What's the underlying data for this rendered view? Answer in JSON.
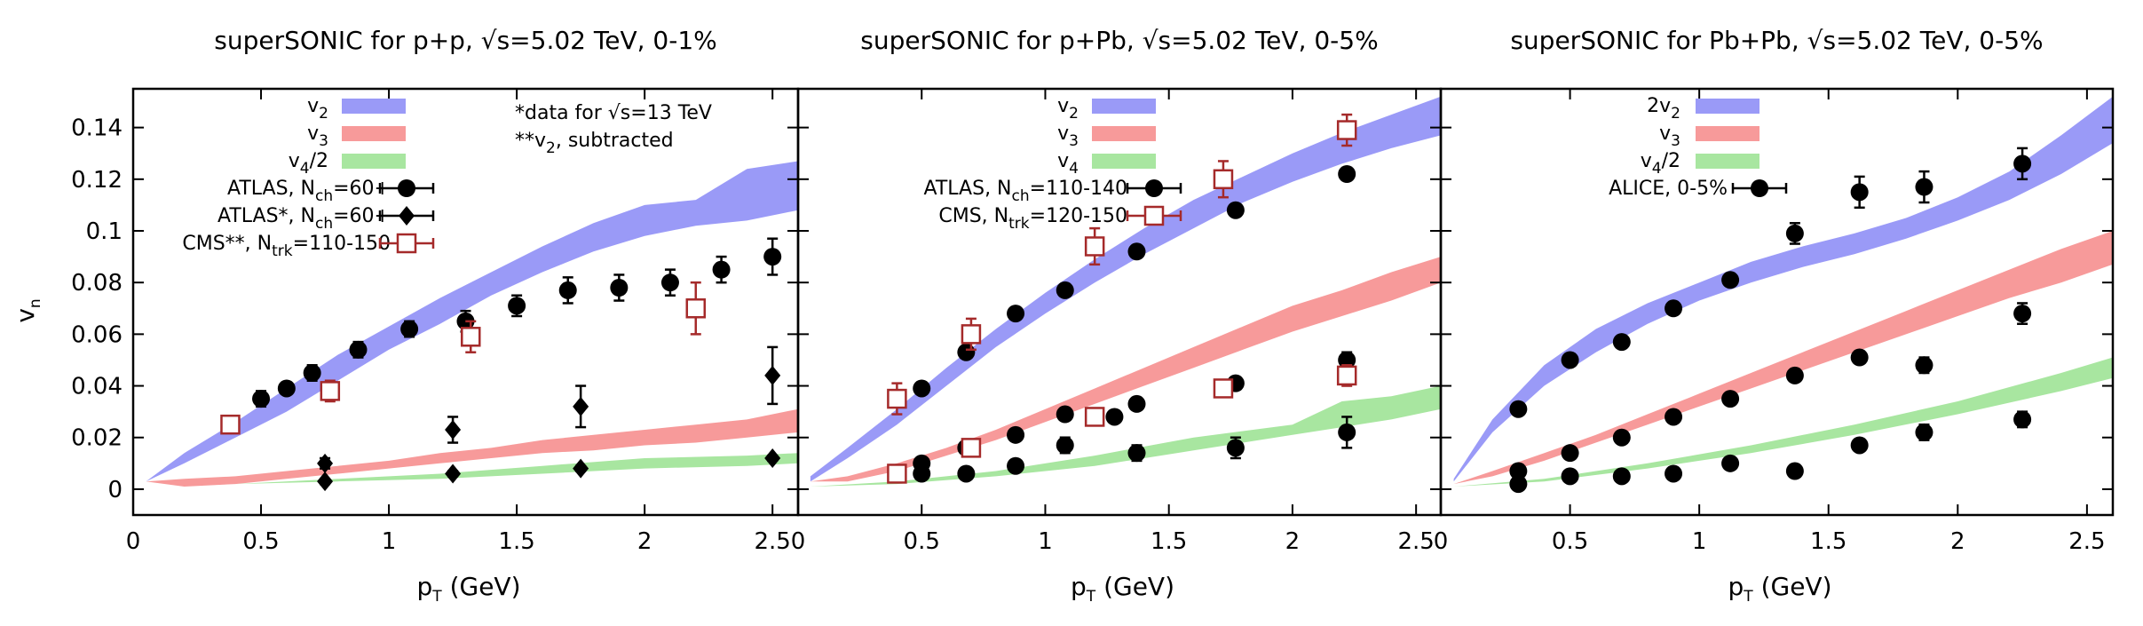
{
  "colors": {
    "v2": "#9a9af7",
    "v3": "#f79a9a",
    "v4": "#a8e6a0",
    "cms": "#a52a2a",
    "markers": "#000000"
  },
  "axes": {
    "xlabel": "p",
    "xlabel_sub": "T",
    "xlabel_unit": " (GeV)",
    "ylabel": "v",
    "ylabel_sub": "n"
  },
  "x_ticks": [
    "0",
    "0.5",
    "1",
    "1.5",
    "2",
    "2.5"
  ],
  "y_ticks": [
    "0",
    "0.02",
    "0.04",
    "0.06",
    "0.08",
    "0.1",
    "0.12",
    "0.14"
  ],
  "chart_data": [
    {
      "type": "line",
      "title": "superSONIC for p+p, √s=5.02 TeV, 0-1%",
      "xlim": [
        0,
        2.6
      ],
      "ylim": [
        -0.01,
        0.155
      ],
      "notes": [
        "*data for √s=13 TeV",
        "**v",
        "2",
        ", subtracted"
      ],
      "bands": [
        {
          "id": "v2",
          "label": "v",
          "sub": "2",
          "prefix": "",
          "suffix": "",
          "color": "#9a9af7",
          "x": [
            0.05,
            0.2,
            0.4,
            0.6,
            0.8,
            1.0,
            1.2,
            1.4,
            1.6,
            1.8,
            2.0,
            2.2,
            2.4,
            2.6
          ],
          "lo": [
            0.003,
            0.01,
            0.02,
            0.03,
            0.042,
            0.054,
            0.064,
            0.075,
            0.084,
            0.092,
            0.098,
            0.102,
            0.104,
            0.108
          ],
          "hi": [
            0.003,
            0.014,
            0.026,
            0.039,
            0.052,
            0.063,
            0.074,
            0.084,
            0.094,
            0.103,
            0.11,
            0.112,
            0.124,
            0.127
          ]
        },
        {
          "id": "v3",
          "label": "v",
          "sub": "3",
          "prefix": "",
          "suffix": "",
          "color": "#f79a9a",
          "x": [
            0.05,
            0.2,
            0.4,
            0.6,
            0.8,
            1.0,
            1.2,
            1.4,
            1.6,
            1.8,
            2.0,
            2.2,
            2.4,
            2.6
          ],
          "lo": [
            0.003,
            0.001,
            0.002,
            0.004,
            0.006,
            0.008,
            0.01,
            0.012,
            0.014,
            0.015,
            0.017,
            0.018,
            0.02,
            0.022
          ],
          "hi": [
            0.003,
            0.004,
            0.005,
            0.007,
            0.009,
            0.011,
            0.014,
            0.016,
            0.019,
            0.021,
            0.023,
            0.025,
            0.027,
            0.031
          ]
        },
        {
          "id": "v4",
          "label": "v",
          "sub": "4",
          "prefix": "",
          "suffix": "/2",
          "color": "#a8e6a0",
          "x": [
            0.05,
            0.4,
            0.8,
            1.2,
            1.6,
            2.0,
            2.4,
            2.6
          ],
          "lo": [
            0.002,
            0.002,
            0.003,
            0.004,
            0.006,
            0.008,
            0.009,
            0.01
          ],
          "hi": [
            0.002,
            0.002,
            0.004,
            0.006,
            0.009,
            0.012,
            0.013,
            0.014
          ]
        }
      ],
      "series": [
        {
          "id": "atlas",
          "marker": "circle",
          "color": "#000000",
          "label": "ATLAS, N",
          "sub": "ch",
          "suffix": "=60+",
          "x": [
            0.5,
            0.6,
            0.7,
            0.88,
            1.08,
            1.3,
            1.5,
            1.7,
            1.9,
            2.1,
            2.3,
            2.5
          ],
          "y": [
            0.035,
            0.039,
            0.045,
            0.054,
            0.062,
            0.065,
            0.071,
            0.077,
            0.078,
            0.08,
            0.085,
            0.09
          ],
          "err": [
            0.003,
            0.002,
            0.003,
            0.003,
            0.003,
            0.004,
            0.004,
            0.005,
            0.005,
            0.005,
            0.005,
            0.007
          ]
        },
        {
          "id": "atlas13",
          "marker": "diamond",
          "color": "#000000",
          "label": "ATLAS*, N",
          "sub": "ch",
          "suffix": "=60+",
          "x": [
            0.75,
            0.75,
            1.25,
            1.25,
            1.75,
            1.75,
            2.5,
            2.5
          ],
          "y": [
            0.003,
            0.01,
            0.006,
            0.023,
            0.008,
            0.032,
            0.012,
            0.044
          ],
          "err": [
            0.001,
            0.002,
            0.001,
            0.005,
            0.001,
            0.008,
            0.001,
            0.011
          ]
        },
        {
          "id": "cms",
          "marker": "square-open",
          "color": "#a52a2a",
          "label": "CMS**, N",
          "sub": "trk",
          "suffix": "=110-150",
          "x": [
            0.38,
            0.77,
            1.32,
            2.2
          ],
          "y": [
            0.025,
            0.038,
            0.059,
            0.07
          ],
          "err": [
            0.002,
            0.004,
            0.006,
            0.01
          ]
        }
      ]
    },
    {
      "type": "line",
      "title": "superSONIC for p+Pb, √s=5.02 TeV, 0-5%",
      "xlim": [
        0,
        2.6
      ],
      "ylim": [
        -0.01,
        0.155
      ],
      "notes": [],
      "bands": [
        {
          "id": "v2",
          "label": "v",
          "sub": "2",
          "prefix": "",
          "suffix": "",
          "color": "#9a9af7",
          "x": [
            0.05,
            0.2,
            0.4,
            0.6,
            0.8,
            1.0,
            1.2,
            1.4,
            1.6,
            1.8,
            2.0,
            2.2,
            2.4,
            2.6
          ],
          "lo": [
            0.003,
            0.012,
            0.025,
            0.04,
            0.055,
            0.068,
            0.08,
            0.091,
            0.101,
            0.111,
            0.119,
            0.126,
            0.132,
            0.137
          ],
          "hi": [
            0.005,
            0.016,
            0.031,
            0.047,
            0.062,
            0.076,
            0.089,
            0.101,
            0.112,
            0.121,
            0.13,
            0.138,
            0.145,
            0.152
          ]
        },
        {
          "id": "v3",
          "label": "v",
          "sub": "3",
          "prefix": "",
          "suffix": "",
          "color": "#f79a9a",
          "x": [
            0.05,
            0.2,
            0.4,
            0.6,
            0.8,
            1.0,
            1.2,
            1.4,
            1.6,
            1.8,
            2.0,
            2.2,
            2.4,
            2.6
          ],
          "lo": [
            0.003,
            0.003,
            0.007,
            0.013,
            0.019,
            0.026,
            0.033,
            0.04,
            0.047,
            0.054,
            0.061,
            0.067,
            0.073,
            0.08
          ],
          "hi": [
            0.003,
            0.005,
            0.01,
            0.016,
            0.023,
            0.031,
            0.039,
            0.047,
            0.055,
            0.063,
            0.071,
            0.077,
            0.084,
            0.09
          ]
        },
        {
          "id": "v4",
          "label": "v",
          "sub": "4",
          "prefix": "",
          "suffix": "",
          "color": "#a8e6a0",
          "x": [
            0.05,
            0.4,
            0.8,
            1.2,
            1.6,
            2.0,
            2.2,
            2.4,
            2.6
          ],
          "lo": [
            0.001,
            0.002,
            0.005,
            0.009,
            0.015,
            0.021,
            0.024,
            0.027,
            0.031
          ],
          "hi": [
            0.001,
            0.003,
            0.007,
            0.013,
            0.02,
            0.025,
            0.034,
            0.036,
            0.04
          ]
        }
      ],
      "series": [
        {
          "id": "atlas",
          "marker": "circle",
          "color": "#000000",
          "label": "ATLAS, N",
          "sub": "ch",
          "suffix": "=110-140",
          "x": [
            0.5,
            0.68,
            0.88,
            1.08,
            1.28,
            1.37,
            1.77,
            2.22,
            0.5,
            0.68,
            0.88,
            1.08,
            1.37,
            1.77,
            2.22,
            0.5,
            0.68,
            0.88,
            1.08,
            1.37,
            1.77,
            2.22
          ],
          "y": [
            0.039,
            0.053,
            0.068,
            0.077,
            0.028,
            0.092,
            0.108,
            0.122,
            0.01,
            0.016,
            0.021,
            0.029,
            0.033,
            0.041,
            0.05,
            0.006,
            0.006,
            0.009,
            0.017,
            0.014,
            0.016,
            0.022
          ],
          "err": [
            0.002,
            0.002,
            0.002,
            0.002,
            0.002,
            0.002,
            0.002,
            0.002,
            0.001,
            0.002,
            0.002,
            0.002,
            0.002,
            0.002,
            0.003,
            0.001,
            0.001,
            0.002,
            0.003,
            0.003,
            0.004,
            0.006
          ]
        },
        {
          "id": "cms",
          "marker": "square-open",
          "color": "#a52a2a",
          "label": "CMS, N",
          "sub": "trk",
          "suffix": "=120-150",
          "x": [
            0.4,
            0.7,
            1.2,
            1.72,
            2.22,
            0.4,
            0.7,
            1.2,
            1.72,
            2.22
          ],
          "y": [
            0.035,
            0.06,
            0.094,
            0.12,
            0.139,
            0.006,
            0.016,
            0.028,
            0.039,
            0.044
          ],
          "err": [
            0.006,
            0.006,
            0.007,
            0.007,
            0.006,
            0.002,
            0.003,
            0.003,
            0.003,
            0.004
          ]
        }
      ]
    },
    {
      "type": "line",
      "title": "superSONIC for Pb+Pb, √s=5.02 TeV, 0-5%",
      "xlim": [
        0,
        2.6
      ],
      "ylim": [
        -0.01,
        0.155
      ],
      "notes": [],
      "bands": [
        {
          "id": "v2",
          "label": "v",
          "sub": "2",
          "prefix": "2",
          "suffix": "",
          "color": "#9a9af7",
          "x": [
            0.05,
            0.2,
            0.4,
            0.6,
            0.8,
            1.0,
            1.2,
            1.4,
            1.6,
            1.8,
            2.0,
            2.2,
            2.4,
            2.6
          ],
          "lo": [
            0.003,
            0.022,
            0.04,
            0.053,
            0.064,
            0.073,
            0.08,
            0.086,
            0.091,
            0.097,
            0.104,
            0.112,
            0.122,
            0.134
          ],
          "hi": [
            0.004,
            0.027,
            0.048,
            0.062,
            0.072,
            0.08,
            0.088,
            0.094,
            0.099,
            0.105,
            0.113,
            0.123,
            0.137,
            0.152
          ]
        },
        {
          "id": "v3",
          "label": "v",
          "sub": "3",
          "prefix": "",
          "suffix": "",
          "color": "#f79a9a",
          "x": [
            0.05,
            0.2,
            0.4,
            0.6,
            0.8,
            1.0,
            1.2,
            1.4,
            1.6,
            1.8,
            2.0,
            2.2,
            2.4,
            2.6
          ],
          "lo": [
            0.002,
            0.005,
            0.011,
            0.018,
            0.025,
            0.032,
            0.039,
            0.046,
            0.053,
            0.06,
            0.067,
            0.074,
            0.08,
            0.087
          ],
          "hi": [
            0.002,
            0.007,
            0.014,
            0.021,
            0.029,
            0.037,
            0.045,
            0.053,
            0.061,
            0.069,
            0.077,
            0.085,
            0.093,
            0.1
          ]
        },
        {
          "id": "v4",
          "label": "v",
          "sub": "4",
          "prefix": "",
          "suffix": "/2",
          "color": "#a8e6a0",
          "x": [
            0.05,
            0.4,
            0.8,
            1.2,
            1.6,
            2.0,
            2.4,
            2.6
          ],
          "lo": [
            0.001,
            0.003,
            0.008,
            0.014,
            0.021,
            0.029,
            0.038,
            0.043
          ],
          "hi": [
            0.001,
            0.004,
            0.01,
            0.017,
            0.025,
            0.034,
            0.045,
            0.051
          ]
        }
      ],
      "series": [
        {
          "id": "alice",
          "marker": "circle",
          "color": "#000000",
          "label": "ALICE, 0-5%",
          "sub": "",
          "suffix": "",
          "x": [
            0.3,
            0.5,
            0.7,
            0.9,
            1.12,
            1.37,
            1.62,
            1.87,
            2.25,
            0.3,
            0.5,
            0.7,
            0.9,
            1.12,
            1.37,
            1.62,
            1.87,
            2.25,
            0.3,
            0.5,
            0.7,
            0.9,
            1.12,
            1.37,
            1.62,
            1.87,
            2.25
          ],
          "y": [
            0.031,
            0.05,
            0.057,
            0.07,
            0.081,
            0.099,
            0.115,
            0.117,
            0.126,
            0.007,
            0.014,
            0.02,
            0.028,
            0.035,
            0.044,
            0.051,
            0.048,
            0.068,
            0.002,
            0.005,
            0.005,
            0.006,
            0.01,
            0.007,
            0.017,
            0.022,
            0.027
          ],
          "err": [
            0.002,
            0.002,
            0.002,
            0.002,
            0.002,
            0.004,
            0.006,
            0.006,
            0.006,
            0.001,
            0.001,
            0.002,
            0.002,
            0.002,
            0.002,
            0.002,
            0.003,
            0.004,
            0.001,
            0.001,
            0.001,
            0.001,
            0.002,
            0.002,
            0.002,
            0.003,
            0.003
          ]
        }
      ]
    }
  ]
}
